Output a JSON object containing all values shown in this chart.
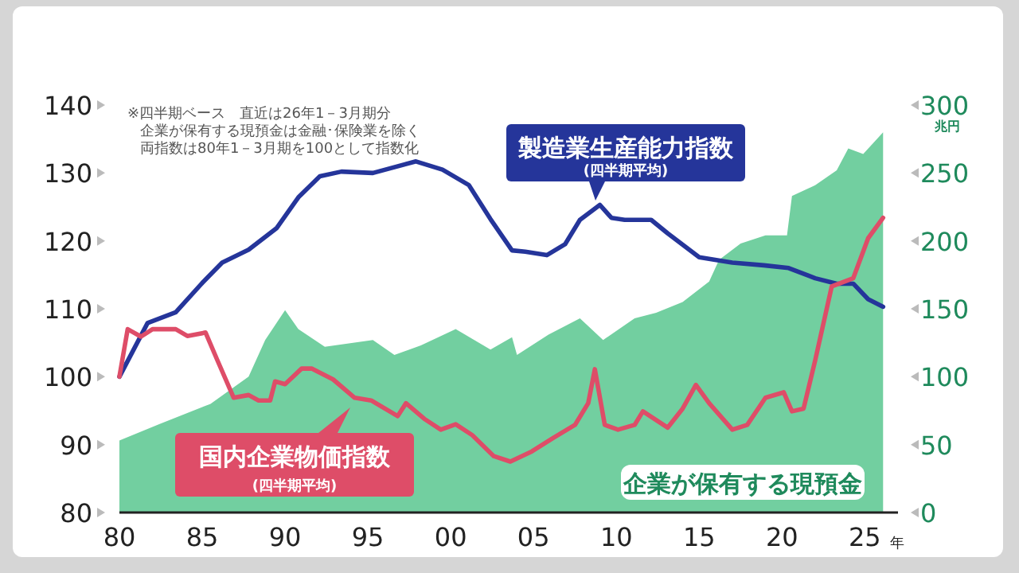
{
  "chart_data": {
    "type": "line",
    "xlabel": "年",
    "y2label": "兆円",
    "xlim": [
      1980,
      2027
    ],
    "xticks": [
      {
        "value": 1980,
        "label": "80"
      },
      {
        "value": 1985,
        "label": "85"
      },
      {
        "value": 1990,
        "label": "90"
      },
      {
        "value": 1995,
        "label": "95"
      },
      {
        "value": 2000,
        "label": "00"
      },
      {
        "value": 2005,
        "label": "05"
      },
      {
        "value": 2010,
        "label": "10"
      },
      {
        "value": 2015,
        "label": "15"
      },
      {
        "value": 2020,
        "label": "20"
      },
      {
        "value": 2025,
        "label": "25"
      }
    ],
    "ylim": [
      80,
      140
    ],
    "yticks": [
      80,
      90,
      100,
      110,
      120,
      130,
      140
    ],
    "y2lim": [
      0,
      300
    ],
    "y2ticks": [
      0,
      50,
      100,
      150,
      200,
      250,
      300
    ],
    "annotations": [
      "※四半期ベース　直近は26年1－3月期分",
      "企業が保有する現預金は金融･保険業を除く",
      "両指数は80年1－3月期を100として指数化",
      "(四半期平均)",
      "(四半期平均)"
    ],
    "series": [
      {
        "name": "企業が保有する現預金",
        "type": "area",
        "axis": "y2",
        "color": "#72cfa0",
        "x": [
          1980,
          1982.4,
          1985.5,
          1987.8,
          1988.8,
          1990,
          1990.8,
          1992.4,
          1995.3,
          1996.6,
          1998.2,
          2000.3,
          2002.4,
          2003.7,
          2004,
          2005.9,
          2007.8,
          2009.2,
          2011.1,
          2012.4,
          2014,
          2015.6,
          2016.2,
          2017.5,
          2019,
          2020.3,
          2020.6,
          2022,
          2023.3,
          2024,
          2024.9,
          2026.1
        ],
        "values": [
          53,
          65,
          80,
          100,
          127,
          149,
          135,
          122,
          127,
          116,
          123,
          135,
          120,
          129,
          116,
          131,
          143,
          127,
          143,
          147,
          155,
          170,
          186,
          198,
          204,
          204,
          233,
          241,
          252,
          268,
          264,
          280
        ]
      },
      {
        "name": "製造業生産能力指数",
        "color": "#25359a",
        "x": [
          1980,
          1981.7,
          1983.4,
          1985,
          1986.2,
          1987.8,
          1989.5,
          1990.8,
          1992.1,
          1993.4,
          1995.3,
          1997.9,
          1999.5,
          2001.1,
          2002.4,
          2003.7,
          2004.5,
          2005.8,
          2006.9,
          2007.8,
          2009,
          2009.7,
          2010.5,
          2012.1,
          2013.1,
          2015,
          2017,
          2018.9,
          2020.4,
          2022,
          2023.3,
          2024.3,
          2025.2,
          2026.1
        ],
        "values": [
          100,
          107.9,
          109.5,
          113.8,
          116.8,
          118.7,
          121.9,
          126.4,
          129.5,
          130.2,
          130,
          131.7,
          130.5,
          128.2,
          123.2,
          118.6,
          118.4,
          117.9,
          119.5,
          123.1,
          125.3,
          123.4,
          123.1,
          123.1,
          121.1,
          117.6,
          116.8,
          116.4,
          116,
          114.5,
          113.7,
          113.7,
          111.4,
          110.3
        ]
      },
      {
        "name": "国内企業物価指数",
        "color": "#de4d68",
        "x": [
          1980,
          1980.5,
          1981.3,
          1982,
          1983.4,
          1984.1,
          1985.2,
          1985.9,
          1986.9,
          1987.8,
          1988.4,
          1989.1,
          1989.4,
          1990,
          1991,
          1991.6,
          1992.9,
          1994.2,
          1995.2,
          1996.8,
          1997.3,
          1998.4,
          1999.4,
          2000.3,
          2001.3,
          2002.6,
          2003.6,
          2004.9,
          2006.2,
          2007.5,
          2008.3,
          2008.7,
          2009.3,
          2010.1,
          2011.1,
          2011.6,
          2013.1,
          2014,
          2014.8,
          2015.6,
          2017,
          2017.9,
          2019,
          2020.1,
          2020.6,
          2021.3,
          2022,
          2023,
          2024.3,
          2025.2,
          2026.1
        ],
        "values": [
          100,
          107,
          105.9,
          107,
          107,
          106,
          106.5,
          102.5,
          96.9,
          97.3,
          96.5,
          96.5,
          99.3,
          98.9,
          101.2,
          101.2,
          99.6,
          96.9,
          96.5,
          94.2,
          96.1,
          93.8,
          92.2,
          93,
          91.4,
          88.3,
          87.5,
          89,
          91,
          92.9,
          96.1,
          101.1,
          92.9,
          92.2,
          92.9,
          94.9,
          92.5,
          95.3,
          98.8,
          96.1,
          92.2,
          92.9,
          96.9,
          97.7,
          94.9,
          95.3,
          102.4,
          113.3,
          114.5,
          120.4,
          123.4
        ]
      }
    ]
  }
}
